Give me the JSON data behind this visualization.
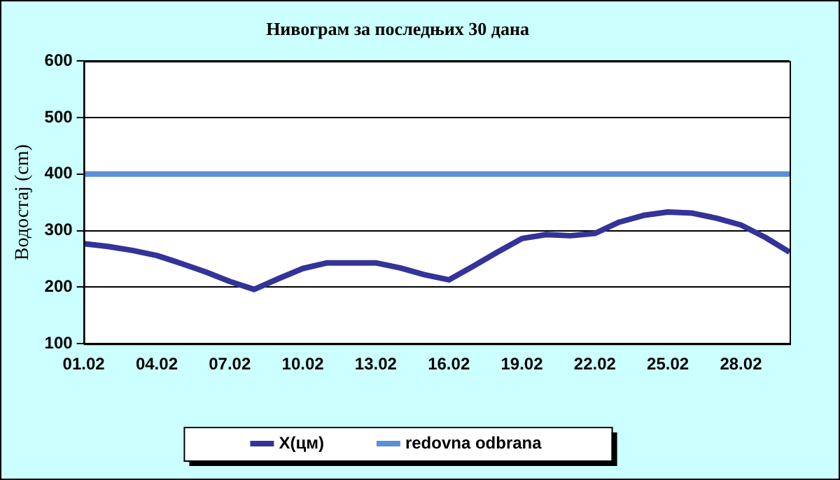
{
  "chart_data": {
    "type": "line",
    "title": "Нивограм за последњих 30 дана",
    "ylabel": "Водостај (cm)",
    "categories": [
      "01.02",
      null,
      null,
      "04.02",
      null,
      null,
      "07.02",
      null,
      null,
      "10.02",
      null,
      null,
      "13.02",
      null,
      null,
      "16.02",
      null,
      null,
      "19.02",
      null,
      null,
      "22.02",
      null,
      null,
      "25.02",
      null,
      null,
      "28.02",
      null,
      null
    ],
    "series": [
      {
        "name": "X(цм)",
        "color": "#333399",
        "values": [
          277,
          272,
          265,
          256,
          242,
          227,
          210,
          196,
          215,
          233,
          243,
          243,
          243,
          234,
          222,
          213,
          237,
          262,
          286,
          293,
          291,
          295,
          315,
          327,
          333,
          331,
          322,
          310,
          288,
          262
        ]
      },
      {
        "name": "redovna odbrana",
        "color": "#5b8fd6",
        "values": [
          400,
          400,
          400,
          400,
          400,
          400,
          400,
          400,
          400,
          400,
          400,
          400,
          400,
          400,
          400,
          400,
          400,
          400,
          400,
          400,
          400,
          400,
          400,
          400,
          400,
          400,
          400,
          400,
          400,
          400
        ]
      }
    ],
    "ylim": [
      100,
      600
    ],
    "yticks": [
      100,
      200,
      300,
      400,
      500,
      600
    ],
    "grid": "y",
    "legend": "bottom",
    "marker": "none",
    "line_style": "solid"
  }
}
